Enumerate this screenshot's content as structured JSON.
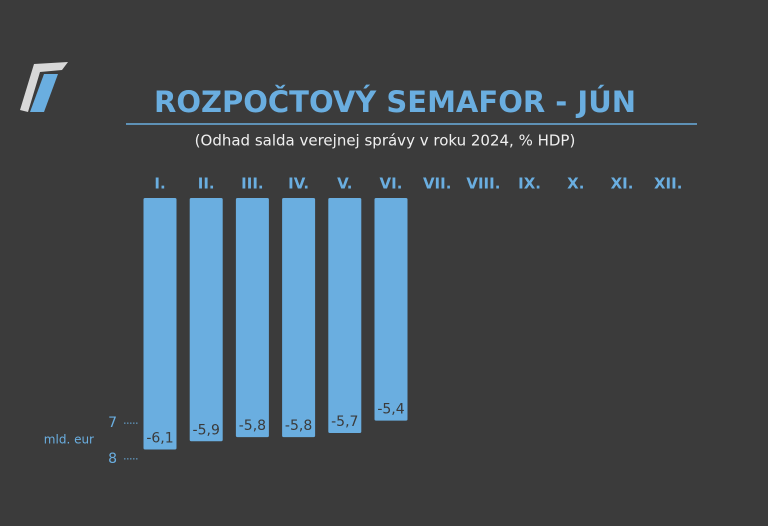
{
  "chart_data": {
    "type": "bar",
    "title": "ROZPOČTOVÝ SEMAFOR - JÚN",
    "subtitle": "(Odhad salda verejnej správy v roku 2024, % HDP)",
    "categories": [
      "I.",
      "II.",
      "III.",
      "IV.",
      "V.",
      "VI.",
      "VII.",
      "VIII.",
      "IX.",
      "X.",
      "XI.",
      "XII."
    ],
    "values": [
      -6.1,
      -5.9,
      -5.8,
      -5.8,
      -5.7,
      -5.4,
      null,
      null,
      null,
      null,
      null,
      null
    ],
    "value_labels": [
      "-6,1",
      "-5,9",
      "-5,8",
      "-5,8",
      "-5,7",
      "-5,4",
      null,
      null,
      null,
      null,
      null,
      null
    ],
    "color": "#6aaee0",
    "ylim": [
      -6.5,
      0
    ],
    "y2label": "mld. eur",
    "y2lim": [
      8.2,
      0.7
    ],
    "y2ticks": [
      7,
      8
    ]
  }
}
